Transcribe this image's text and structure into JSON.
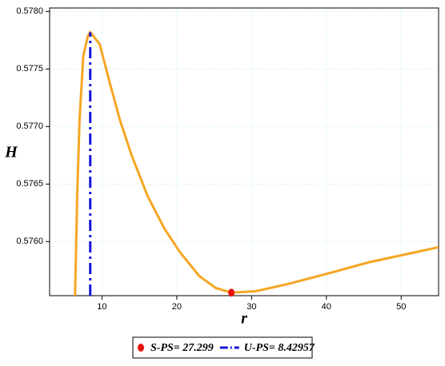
{
  "chart_data": {
    "type": "line",
    "xlabel": "r",
    "ylabel": "H",
    "xlim": [
      3,
      55
    ],
    "ylim": [
      0.57553,
      0.57803
    ],
    "xticks": [
      10,
      20,
      30,
      40,
      50
    ],
    "yticks": [
      {
        "value": 0.576,
        "label": "0.5760"
      },
      {
        "value": 0.5765,
        "label": "0.5765"
      },
      {
        "value": 0.577,
        "label": "0.5770"
      },
      {
        "value": 0.5775,
        "label": "0.5775"
      },
      {
        "value": 0.578,
        "label": "0.5780"
      }
    ],
    "grid": true,
    "legend": "bottom",
    "series": [
      {
        "type": "line",
        "color": "#f5a623",
        "x": [
          6.4,
          6.7,
          7.0,
          7.5,
          8.1,
          8.43,
          9.7,
          10.8,
          12.4,
          14,
          16.1,
          18.3,
          20.4,
          23,
          25.2,
          27.3,
          30.6,
          34.9,
          40.2,
          45.6,
          55
        ],
        "values": [
          0.57553,
          0.57643,
          0.577056,
          0.577611,
          0.577785,
          0.577819,
          0.577715,
          0.577438,
          0.577056,
          0.576743,
          0.576396,
          0.576118,
          0.57591,
          0.575701,
          0.575597,
          0.575556,
          0.575569,
          0.575632,
          0.575722,
          0.575819,
          0.575951
        ]
      },
      {
        "type": "scatter",
        "name": "S-PS= 27.299",
        "color": "#e8120c",
        "x": [
          27.299
        ],
        "values": [
          0.575556
        ]
      },
      {
        "type": "line",
        "dash": "dashdot",
        "name": "U-PS= 8.42957",
        "color": "#1414d8",
        "x": [
          8.42957,
          8.42957
        ],
        "values": [
          0.57553,
          0.577819
        ]
      }
    ]
  }
}
